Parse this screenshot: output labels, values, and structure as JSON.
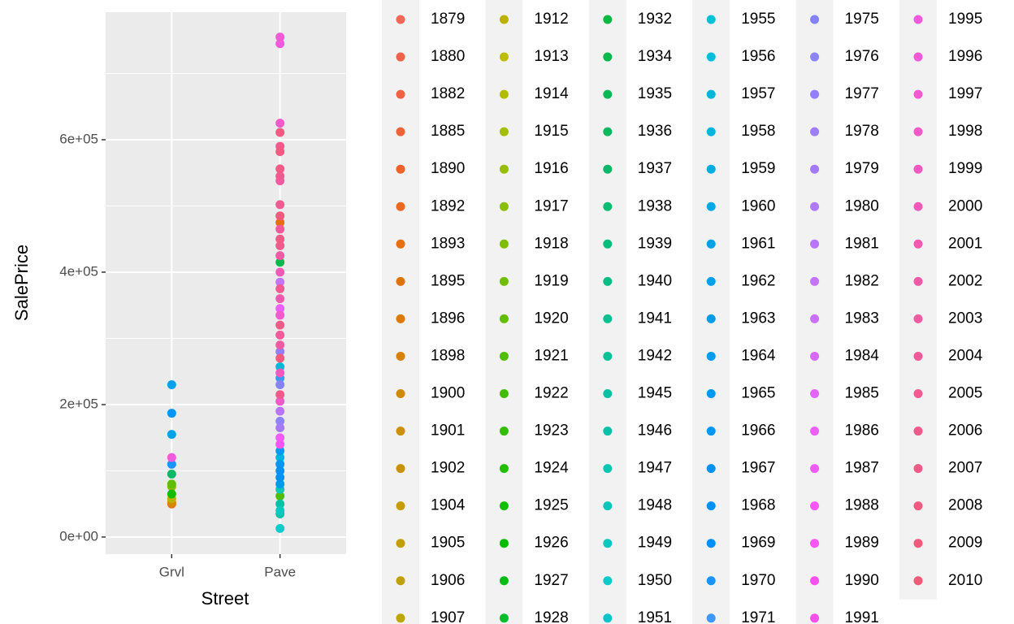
{
  "chart_data": {
    "type": "scatter",
    "x_label": "Street",
    "y_label": "SalePrice",
    "categories": [
      "Grvl",
      "Pave"
    ],
    "ylim": [
      -25800,
      792600
    ],
    "yticks": [
      {
        "value": 0,
        "label": "0e+00"
      },
      {
        "value": 200000,
        "label": "2e+05"
      },
      {
        "value": 400000,
        "label": "4e+05"
      },
      {
        "value": 600000,
        "label": "6e+05"
      }
    ],
    "y_minor_grid": [
      100000,
      300000,
      500000,
      700000
    ],
    "grid": true,
    "legend_position": "right",
    "series": [
      {
        "name": "1879",
        "color": "hsl(5,85%,65%)"
      },
      {
        "name": "1880",
        "color": "hsl(8,85%,62%)"
      },
      {
        "name": "1882",
        "color": "hsl(11,85%,60%)"
      },
      {
        "name": "1885",
        "color": "hsl(14,85%,58%)"
      },
      {
        "name": "1890",
        "color": "hsl(17,85%,55%)"
      },
      {
        "name": "1892",
        "color": "hsl(22,85%,52%)",
        "x": [
          "Grvl"
        ],
        "values": [
          50000
        ]
      },
      {
        "name": "1893",
        "color": "hsl(27,90%,48%)",
        "x": [
          "Pave"
        ],
        "values": [
          475000
        ]
      },
      {
        "name": "1895",
        "color": "hsl(30,95%,45%)"
      },
      {
        "name": "1896",
        "color": "hsl(33,95%,44%)"
      },
      {
        "name": "1898",
        "color": "hsl(36,95%,43%)"
      },
      {
        "name": "1900",
        "color": "hsl(39,95%,42%)",
        "x": [
          "Grvl"
        ],
        "values": [
          52000
        ]
      },
      {
        "name": "1901",
        "color": "hsl(42,95%,41%)"
      },
      {
        "name": "1902",
        "color": "hsl(44,95%,40%)"
      },
      {
        "name": "1904",
        "color": "hsl(47,95%,40%)"
      },
      {
        "name": "1905",
        "color": "hsl(49,95%,39%)"
      },
      {
        "name": "1906",
        "color": "hsl(51,95%,38%)"
      },
      {
        "name": "1907",
        "color": "hsl(53,95%,38%)"
      },
      {
        "name": "1912",
        "color": "hsl(56,95%,38%)",
        "x": [
          "Grvl"
        ],
        "values": [
          58000
        ]
      },
      {
        "name": "1913",
        "color": "hsl(60,95%,38%)"
      },
      {
        "name": "1914",
        "color": "hsl(64,95%,38%)"
      },
      {
        "name": "1915",
        "color": "hsl(68,95%,38%)"
      },
      {
        "name": "1916",
        "color": "hsl(72,95%,38%)"
      },
      {
        "name": "1917",
        "color": "hsl(76,95%,38%)",
        "x": [
          "Grvl"
        ],
        "values": [
          76000
        ]
      },
      {
        "name": "1918",
        "color": "hsl(80,95%,38%)"
      },
      {
        "name": "1919",
        "color": "hsl(85,95%,38%)"
      },
      {
        "name": "1920",
        "color": "hsl(90,95%,38%)",
        "x": [
          "Grvl"
        ],
        "values": [
          80000
        ]
      },
      {
        "name": "1921",
        "color": "hsl(95,95%,38%)",
        "x": [
          "Pave"
        ],
        "values": [
          62000
        ]
      },
      {
        "name": "1922",
        "color": "hsl(100,95%,38%)"
      },
      {
        "name": "1923",
        "color": "hsl(105,95%,38%)"
      },
      {
        "name": "1924",
        "color": "hsl(110,95%,38%)"
      },
      {
        "name": "1925",
        "color": "hsl(115,95%,38%)",
        "x": [
          "Grvl"
        ],
        "values": [
          65000
        ]
      },
      {
        "name": "1926",
        "color": "hsl(120,95%,38%)"
      },
      {
        "name": "1927",
        "color": "hsl(125,95%,38%)"
      },
      {
        "name": "1928",
        "color": "hsl(132,95%,38%)"
      },
      {
        "name": "1932",
        "color": "hsl(140,90%,38%)"
      },
      {
        "name": "1934",
        "color": "hsl(143,90%,38%)",
        "x": [
          "Pave"
        ],
        "values": [
          415000
        ]
      },
      {
        "name": "1935",
        "color": "hsl(146,90%,38%)"
      },
      {
        "name": "1936",
        "color": "hsl(149,90%,38%)"
      },
      {
        "name": "1937",
        "color": "hsl(152,90%,38%)",
        "x": [
          "Grvl"
        ],
        "values": [
          95000
        ]
      },
      {
        "name": "1938",
        "color": "hsl(155,90%,39%)"
      },
      {
        "name": "1939",
        "color": "hsl(158,90%,39%)"
      },
      {
        "name": "1940",
        "color": "hsl(161,90%,39%)"
      },
      {
        "name": "1941",
        "color": "hsl(164,90%,40%)"
      },
      {
        "name": "1942",
        "color": "hsl(167,90%,40%)"
      },
      {
        "name": "1945",
        "color": "hsl(170,90%,40%)",
        "x": [
          "Pave"
        ],
        "values": [
          50000
        ]
      },
      {
        "name": "1946",
        "color": "hsl(172,90%,40%)",
        "x": [
          "Pave"
        ],
        "values": [
          35000
        ]
      },
      {
        "name": "1947",
        "color": "hsl(174,90%,41%)",
        "x": [
          "Pave"
        ],
        "values": [
          72000
        ]
      },
      {
        "name": "1948",
        "color": "hsl(176,90%,41%)"
      },
      {
        "name": "1949",
        "color": "hsl(178,90%,41%)",
        "x": [
          "Pave"
        ],
        "values": [
          40000
        ]
      },
      {
        "name": "1950",
        "color": "hsl(180,90%,42%)",
        "x": [
          "Pave"
        ],
        "values": [
          13000
        ]
      },
      {
        "name": "1951",
        "color": "hsl(182,90%,42%)"
      },
      {
        "name": "1955",
        "color": "hsl(186,100%,42%)"
      },
      {
        "name": "1956",
        "color": "hsl(188,100%,43%)"
      },
      {
        "name": "1957",
        "color": "hsl(190,100%,43%)",
        "x": [
          "Pave"
        ],
        "values": [
          257000
        ]
      },
      {
        "name": "1958",
        "color": "hsl(192,100%,44%)",
        "x": [
          "Pave"
        ],
        "values": [
          120000
        ]
      },
      {
        "name": "1959",
        "color": "hsl(194,100%,44%)"
      },
      {
        "name": "1960",
        "color": "hsl(196,100%,45%)"
      },
      {
        "name": "1961",
        "color": "hsl(198,100%,45%)",
        "x": [
          "Grvl"
        ],
        "values": [
          155000
        ]
      },
      {
        "name": "1962",
        "color": "hsl(199,100%,46%)",
        "x": [
          "Grvl"
        ],
        "values": [
          230000
        ]
      },
      {
        "name": "1963",
        "color": "hsl(200,100%,46%)",
        "x": [
          "Pave"
        ],
        "values": [
          80000
        ]
      },
      {
        "name": "1964",
        "color": "hsl(201,100%,47%)",
        "x": [
          "Pave"
        ],
        "values": [
          130000
        ]
      },
      {
        "name": "1965",
        "color": "hsl(202,100%,47%)"
      },
      {
        "name": "1966",
        "color": "hsl(203,100%,48%)",
        "x": [
          "Grvl",
          "Pave"
        ],
        "values": [
          187000,
          110000
        ]
      },
      {
        "name": "1967",
        "color": "hsl(204,100%,48%)",
        "x": [
          "Pave"
        ],
        "values": [
          90000
        ]
      },
      {
        "name": "1968",
        "color": "hsl(205,100%,49%)",
        "x": [
          "Pave"
        ],
        "values": [
          100000
        ]
      },
      {
        "name": "1969",
        "color": "hsl(206,100%,49%)"
      },
      {
        "name": "1970",
        "color": "hsl(208,100%,55%)",
        "x": [
          "Grvl"
        ],
        "values": [
          110000
        ]
      },
      {
        "name": "1971",
        "color": "hsl(212,100%,62%)",
        "x": [
          "Pave"
        ],
        "values": [
          240000
        ]
      },
      {
        "name": "1975",
        "color": "hsl(240,95%,75%)",
        "x": [
          "Pave"
        ],
        "values": [
          230000
        ]
      },
      {
        "name": "1976",
        "color": "hsl(245,95%,75%)",
        "x": [
          "Pave"
        ],
        "values": [
          175000
        ]
      },
      {
        "name": "1977",
        "color": "hsl(250,95%,74%)",
        "x": [
          "Pave"
        ],
        "values": [
          280000
        ]
      },
      {
        "name": "1978",
        "color": "hsl(255,95%,74%)"
      },
      {
        "name": "1979",
        "color": "hsl(260,95%,73%)",
        "x": [
          "Pave"
        ],
        "values": [
          165000
        ]
      },
      {
        "name": "1980",
        "color": "hsl(265,95%,73%)"
      },
      {
        "name": "1981",
        "color": "hsl(270,95%,72%)",
        "x": [
          "Pave"
        ],
        "values": [
          190000
        ]
      },
      {
        "name": "1982",
        "color": "hsl(275,95%,72%)",
        "x": [
          "Pave"
        ],
        "values": [
          385000
        ]
      },
      {
        "name": "1983",
        "color": "hsl(280,95%,71%)"
      },
      {
        "name": "1984",
        "color": "hsl(285,95%,70%)"
      },
      {
        "name": "1985",
        "color": "hsl(290,95%,69%)"
      },
      {
        "name": "1986",
        "color": "hsl(294,95%,68%)",
        "x": [
          "Pave"
        ],
        "values": [
          345000
        ]
      },
      {
        "name": "1987",
        "color": "hsl(297,95%,67%)",
        "x": [
          "Pave"
        ],
        "values": [
          150000
        ]
      },
      {
        "name": "1988",
        "color": "hsl(300,95%,66%)"
      },
      {
        "name": "1989",
        "color": "hsl(302,95%,66%)",
        "x": [
          "Pave"
        ],
        "values": [
          140000
        ]
      },
      {
        "name": "1990",
        "color": "hsl(304,95%,65%)"
      },
      {
        "name": "1991",
        "color": "hsl(306,95%,65%)"
      },
      {
        "name": "1995",
        "color": "hsl(308,85%,65%)",
        "x": [
          "Grvl",
          "Pave"
        ],
        "values": [
          120000,
          745000
        ]
      },
      {
        "name": "1996",
        "color": "hsl(311,85%,65%)",
        "x": [
          "Pave"
        ],
        "values": [
          755000
        ]
      },
      {
        "name": "1997",
        "color": "hsl(314,85%,65%)",
        "x": [
          "Pave"
        ],
        "values": [
          335000
        ]
      },
      {
        "name": "1998",
        "color": "hsl(317,85%,65%)",
        "x": [
          "Pave",
          "Pave"
        ],
        "values": [
          625000,
          205000
        ]
      },
      {
        "name": "1999",
        "color": "hsl(320,85%,65%)",
        "x": [
          "Pave"
        ],
        "values": [
          248000
        ]
      },
      {
        "name": "2000",
        "color": "hsl(323,85%,65%)",
        "x": [
          "Pave"
        ],
        "values": [
          400000
        ]
      },
      {
        "name": "2001",
        "color": "hsl(326,85%,65%)",
        "x": [
          "Pave"
        ],
        "values": [
          360000
        ]
      },
      {
        "name": "2002",
        "color": "hsl(329,85%,65%)",
        "x": [
          "Pave"
        ],
        "values": [
          425000
        ]
      },
      {
        "name": "2003",
        "color": "hsl(332,85%,65%)",
        "x": [
          "Pave",
          "Pave"
        ],
        "values": [
          538000,
          290000
        ]
      },
      {
        "name": "2004",
        "color": "hsl(335,85%,65%)",
        "x": [
          "Pave",
          "Pave"
        ],
        "values": [
          465000,
          305000
        ]
      },
      {
        "name": "2005",
        "color": "hsl(338,85%,65%)",
        "x": [
          "Pave",
          "Pave",
          "Pave"
        ],
        "values": [
          545000,
          502000,
          375000
        ]
      },
      {
        "name": "2006",
        "color": "hsl(340,85%,65%)",
        "x": [
          "Pave",
          "Pave",
          "Pave"
        ],
        "values": [
          590000,
          440000,
          215000
        ]
      },
      {
        "name": "2007",
        "color": "hsl(342,85%,65%)",
        "x": [
          "Pave",
          "Pave",
          "Pave"
        ],
        "values": [
          556000,
          450000,
          320000
        ]
      },
      {
        "name": "2008",
        "color": "hsl(344,85%,65%)",
        "x": [
          "Pave",
          "Pave",
          "Pave"
        ],
        "values": [
          611000,
          582000,
          270000
        ]
      },
      {
        "name": "2009",
        "color": "hsl(346,85%,65%)",
        "x": [
          "Pave"
        ],
        "values": [
          485000
        ]
      },
      {
        "name": "2010",
        "color": "hsl(348,85%,65%)"
      }
    ]
  }
}
